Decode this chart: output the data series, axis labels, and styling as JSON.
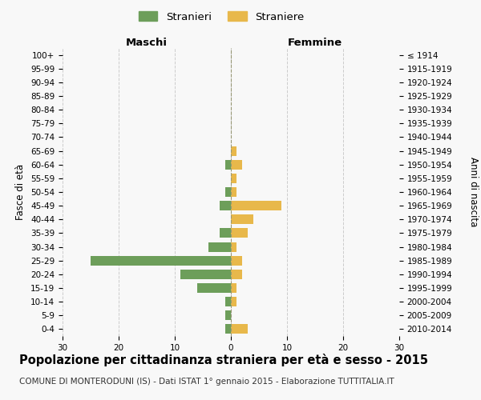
{
  "age_groups": [
    "0-4",
    "5-9",
    "10-14",
    "15-19",
    "20-24",
    "25-29",
    "30-34",
    "35-39",
    "40-44",
    "45-49",
    "50-54",
    "55-59",
    "60-64",
    "65-69",
    "70-74",
    "75-79",
    "80-84",
    "85-89",
    "90-94",
    "95-99",
    "100+"
  ],
  "birth_years": [
    "2010-2014",
    "2005-2009",
    "2000-2004",
    "1995-1999",
    "1990-1994",
    "1985-1989",
    "1980-1984",
    "1975-1979",
    "1970-1974",
    "1965-1969",
    "1960-1964",
    "1955-1959",
    "1950-1954",
    "1945-1949",
    "1940-1944",
    "1935-1939",
    "1930-1934",
    "1925-1929",
    "1920-1924",
    "1915-1919",
    "≤ 1914"
  ],
  "maschi_stranieri": [
    1,
    1,
    1,
    6,
    9,
    25,
    4,
    2,
    0,
    2,
    1,
    0,
    1,
    0,
    0,
    0,
    0,
    0,
    0,
    0,
    0
  ],
  "femmine_straniere": [
    3,
    0,
    1,
    1,
    2,
    2,
    1,
    3,
    4,
    9,
    1,
    1,
    2,
    1,
    0,
    0,
    0,
    0,
    0,
    0,
    0
  ],
  "color_maschi": "#6d9e5a",
  "color_femmine": "#e8b84b",
  "xlim": 30,
  "title": "Popolazione per cittadinanza straniera per età e sesso - 2015",
  "subtitle": "COMUNE DI MONTERODUNI (IS) - Dati ISTAT 1° gennaio 2015 - Elaborazione TUTTITALIA.IT",
  "legend_maschi": "Stranieri",
  "legend_femmine": "Straniere",
  "ylabel_left": "Fasce di età",
  "ylabel_right": "Anni di nascita",
  "label_maschi": "Maschi",
  "label_femmine": "Femmine",
  "bg_color": "#f8f8f8",
  "grid_color": "#cccccc",
  "title_fontsize": 10.5,
  "subtitle_fontsize": 7.5,
  "axis_label_fontsize": 8.5,
  "tick_fontsize": 7.5,
  "bar_height": 0.7
}
